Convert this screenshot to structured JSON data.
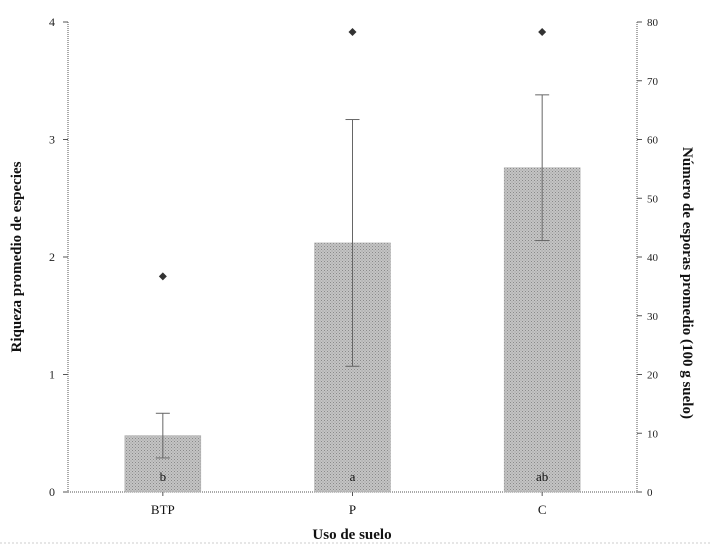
{
  "chart_data": {
    "type": "bar",
    "categories": [
      "BTP",
      "P",
      "C"
    ],
    "series": [
      {
        "axis": "left",
        "values": [
          0.48,
          2.12,
          2.76
        ],
        "error": [
          0.19,
          1.05,
          0.62
        ],
        "labels": [
          "b",
          "a",
          "ab"
        ],
        "color": "#b3b3b3"
      },
      {
        "axis": "right",
        "values": [
          36.7,
          78.3,
          78.3
        ],
        "marker": "diamond",
        "color": "#333333"
      }
    ],
    "xlabel": "Uso de suelo",
    "ylabel": "Riqueza promedio de especies",
    "y2label": "Número de esporas promedio (100 g suelo)",
    "ylim": [
      0,
      4
    ],
    "y2lim": [
      0,
      80
    ],
    "yticks": [
      "0",
      "1",
      "2",
      "3",
      "4"
    ],
    "y2ticks": [
      "0",
      "10",
      "20",
      "30",
      "40",
      "50",
      "60",
      "70",
      "80"
    ],
    "grid": false,
    "legend": "none"
  }
}
